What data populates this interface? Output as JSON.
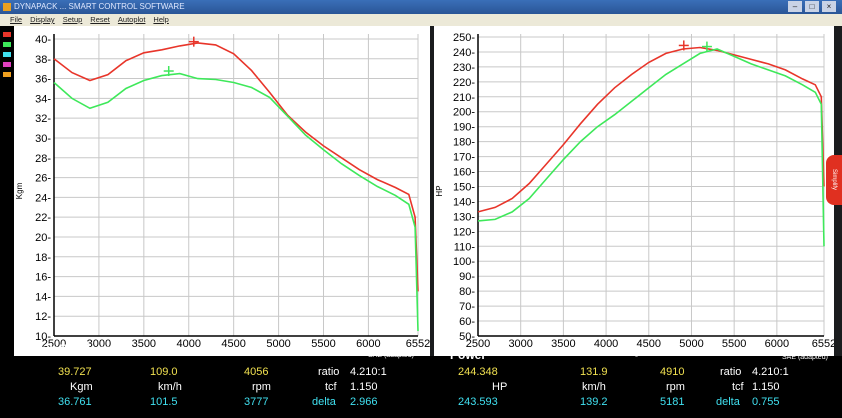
{
  "window": {
    "title": "DYNAPACK ... SMART CONTROL SOFTWARE"
  },
  "menu": [
    "File",
    "Display",
    "Setup",
    "Reset",
    "Autoplot",
    "Help"
  ],
  "colors": {
    "run1": "#e8352a",
    "run2": "#3ee85a",
    "grid": "#c8c8c8",
    "plot_bg": "#ffffff",
    "axis": "#000000"
  },
  "side_tab": "Simplify",
  "charts": {
    "torque": {
      "title": "AxleTrq/Ratio",
      "xlabel": "Engine RPM",
      "ylabel": "Kgm",
      "note": "SAE (adapted)",
      "x_ticks": [
        "2500",
        "3000",
        "3500",
        "4000",
        "4500",
        "5000",
        "5500",
        "6000",
        "6552"
      ],
      "y_ticks": [
        "10",
        "12",
        "14",
        "16",
        "18",
        "20",
        "22",
        "24",
        "26",
        "28",
        "30",
        "32",
        "34",
        "36",
        "38",
        "40"
      ]
    },
    "power": {
      "title": "Power",
      "xlabel": "Engine RPM",
      "ylabel": "HP",
      "note": "SAE (adapted)",
      "x_ticks": [
        "2500",
        "3000",
        "3500",
        "4000",
        "4500",
        "5000",
        "5500",
        "6000",
        "6552"
      ],
      "y_ticks": [
        "50",
        "60",
        "70",
        "80",
        "90",
        "100",
        "110",
        "120",
        "130",
        "140",
        "150",
        "160",
        "170",
        "180",
        "190",
        "200",
        "210",
        "220",
        "230",
        "240",
        "250"
      ]
    }
  },
  "chart_data": [
    {
      "type": "line",
      "title": "AxleTrq/Ratio",
      "xlabel": "Engine RPM",
      "ylabel": "Kgm",
      "xlim": [
        2500,
        6552
      ],
      "ylim": [
        10,
        40.5
      ],
      "grid": true,
      "series": [
        {
          "color": "#e8352a",
          "x": [
            2500,
            2700,
            2900,
            3100,
            3300,
            3500,
            3700,
            3900,
            4100,
            4300,
            4500,
            4700,
            4900,
            5100,
            5300,
            5500,
            5700,
            5900,
            6100,
            6300,
            6450,
            6520,
            6552
          ],
          "values": [
            38.0,
            36.6,
            35.8,
            36.4,
            37.8,
            38.6,
            38.9,
            39.3,
            39.6,
            39.4,
            38.5,
            36.8,
            34.6,
            32.3,
            30.6,
            29.2,
            28.0,
            26.8,
            25.8,
            25.0,
            24.3,
            22.0,
            14.5
          ]
        },
        {
          "color": "#3ee85a",
          "x": [
            2500,
            2700,
            2900,
            3100,
            3300,
            3500,
            3700,
            3900,
            4100,
            4300,
            4500,
            4700,
            4900,
            5100,
            5300,
            5500,
            5700,
            5900,
            6100,
            6300,
            6450,
            6520,
            6552
          ],
          "values": [
            35.6,
            34.0,
            33.0,
            33.6,
            35.0,
            35.8,
            36.3,
            36.5,
            36.0,
            35.9,
            35.6,
            35.1,
            34.1,
            32.2,
            30.3,
            28.8,
            27.4,
            26.2,
            25.1,
            24.2,
            23.3,
            21.0,
            10.5
          ]
        }
      ],
      "markers": [
        {
          "x": 4056,
          "y": 39.727
        },
        {
          "x": 3777,
          "y": 36.761
        }
      ]
    },
    {
      "type": "line",
      "title": "Power",
      "xlabel": "Engine RPM",
      "ylabel": "HP",
      "xlim": [
        2500,
        6552
      ],
      "ylim": [
        50,
        252
      ],
      "grid": true,
      "series": [
        {
          "color": "#e8352a",
          "x": [
            2500,
            2700,
            2900,
            3100,
            3300,
            3500,
            3700,
            3900,
            4100,
            4300,
            4500,
            4700,
            4900,
            5100,
            5300,
            5500,
            5700,
            5900,
            6100,
            6300,
            6450,
            6520,
            6552
          ],
          "values": [
            133,
            136,
            142,
            152,
            165,
            178,
            192,
            205,
            216,
            225,
            233,
            239,
            242,
            243,
            241,
            238,
            235,
            232,
            228,
            222,
            218,
            210,
            150
          ]
        },
        {
          "color": "#3ee85a",
          "x": [
            2500,
            2700,
            2900,
            3100,
            3300,
            3500,
            3700,
            3900,
            4100,
            4300,
            4500,
            4700,
            4900,
            5100,
            5300,
            5500,
            5700,
            5900,
            6100,
            6300,
            6450,
            6520,
            6552
          ],
          "values": [
            127,
            128,
            133,
            142,
            155,
            168,
            180,
            190,
            198,
            207,
            216,
            225,
            232,
            239,
            242,
            237,
            232,
            228,
            224,
            218,
            213,
            205,
            110
          ]
        }
      ],
      "markers": [
        {
          "x": 4910,
          "y": 244.348
        },
        {
          "x": 5181,
          "y": 243.593
        }
      ]
    }
  ],
  "readout": {
    "torque": {
      "title": "AxleTrq/Ratio",
      "xlabel": "Engine RPM",
      "sae": "SAE (adapted)",
      "run1": {
        "value": "39.727",
        "speed": "109.0",
        "rpm": "4056"
      },
      "units": {
        "value": "Kgm",
        "speed": "km/h",
        "rpm": "rpm"
      },
      "run2": {
        "value": "36.761",
        "speed": "101.5",
        "rpm": "3777"
      },
      "ratio_label": "ratio",
      "ratio": "4.210:1",
      "tcf_label": "tcf",
      "tcf": "1.150",
      "delta_label": "delta",
      "delta": "2.966"
    },
    "power": {
      "title": "Power",
      "xlabel": "Engine RPM",
      "sae": "SAE (adapted)",
      "run1": {
        "value": "244.348",
        "speed": "131.9",
        "rpm": "4910"
      },
      "units": {
        "value": "HP",
        "speed": "km/h",
        "rpm": "rpm"
      },
      "run2": {
        "value": "243.593",
        "speed": "139.2",
        "rpm": "5181"
      },
      "ratio_label": "ratio",
      "ratio": "4.210:1",
      "tcf_label": "tcf",
      "tcf": "1.150",
      "delta_label": "delta",
      "delta": "0.755"
    }
  }
}
